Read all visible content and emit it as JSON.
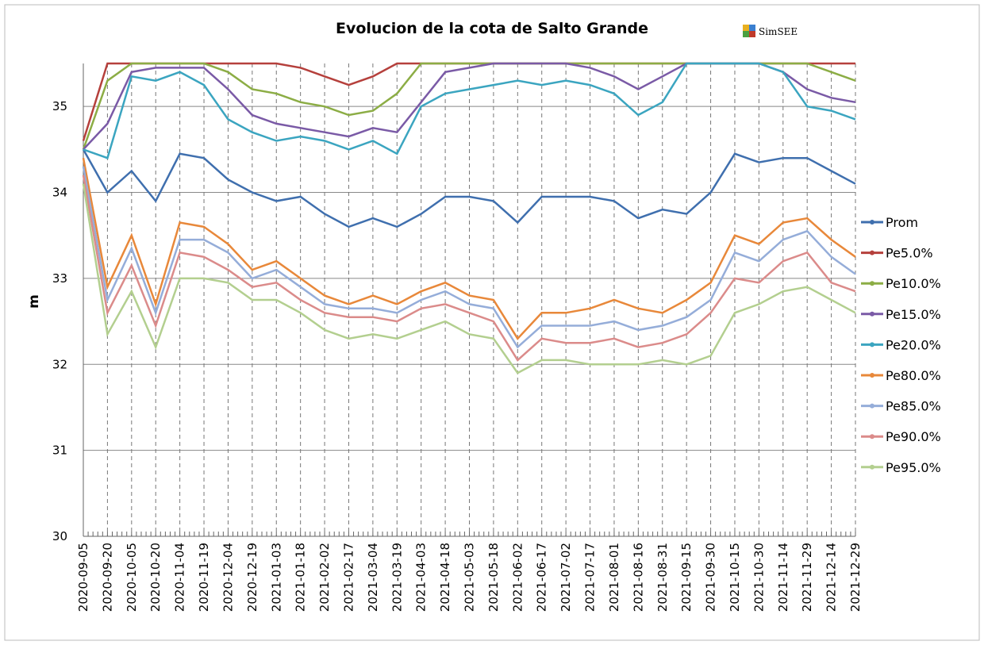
{
  "chart_data": {
    "type": "line",
    "title": "Evolucion de la cota de Salto Grande",
    "logo_text": "SimSEE",
    "y_label": "m",
    "categories": [
      "2020-09-05",
      "2020-09-20",
      "2020-10-05",
      "2020-10-20",
      "2020-11-04",
      "2020-11-19",
      "2020-12-04",
      "2020-12-19",
      "2021-01-03",
      "2021-01-18",
      "2021-02-02",
      "2021-02-17",
      "2021-03-04",
      "2021-03-19",
      "2021-04-03",
      "2021-04-18",
      "2021-05-03",
      "2021-05-18",
      "2021-06-02",
      "2021-06-17",
      "2021-07-02",
      "2021-07-17",
      "2021-08-01",
      "2021-08-16",
      "2021-08-31",
      "2021-09-15",
      "2021-09-30",
      "2021-10-15",
      "2021-10-30",
      "2021-11-14",
      "2021-11-29",
      "2021-12-14",
      "2021-12-29"
    ],
    "ylim": [
      30,
      35.5
    ],
    "yticks": [
      30,
      31,
      32,
      33,
      34,
      35
    ],
    "grid": true,
    "legend": "right",
    "series": [
      {
        "name": "Prom",
        "color": "#3f6fae",
        "values": [
          34.5,
          34.0,
          34.25,
          33.9,
          34.45,
          34.4,
          34.15,
          34.0,
          33.9,
          33.95,
          33.75,
          33.6,
          33.7,
          33.6,
          33.75,
          33.95,
          33.95,
          33.9,
          33.65,
          33.95,
          33.95,
          33.95,
          33.9,
          33.7,
          33.8,
          33.75,
          34.0,
          34.45,
          34.35,
          34.4,
          34.4,
          34.25,
          34.1
        ]
      },
      {
        "name": "Pe5.0%",
        "color": "#b5403c",
        "values": [
          34.6,
          35.5,
          35.5,
          35.5,
          35.5,
          35.5,
          35.5,
          35.5,
          35.5,
          35.45,
          35.35,
          35.25,
          35.35,
          35.5,
          35.5,
          35.5,
          35.5,
          35.5,
          35.5,
          35.5,
          35.5,
          35.5,
          35.5,
          35.5,
          35.5,
          35.5,
          35.5,
          35.5,
          35.5,
          35.5,
          35.5,
          35.5,
          35.5
        ]
      },
      {
        "name": "Pe10.0%",
        "color": "#8cad45",
        "values": [
          34.5,
          35.3,
          35.5,
          35.5,
          35.5,
          35.5,
          35.4,
          35.2,
          35.15,
          35.05,
          35.0,
          34.9,
          34.95,
          35.15,
          35.5,
          35.5,
          35.5,
          35.5,
          35.5,
          35.5,
          35.5,
          35.5,
          35.5,
          35.5,
          35.5,
          35.5,
          35.5,
          35.5,
          35.5,
          35.5,
          35.5,
          35.4,
          35.3
        ]
      },
      {
        "name": "Pe15.0%",
        "color": "#7a5aa6",
        "values": [
          34.5,
          34.8,
          35.4,
          35.45,
          35.45,
          35.45,
          35.2,
          34.9,
          34.8,
          34.75,
          34.7,
          34.65,
          34.75,
          34.7,
          35.05,
          35.4,
          35.45,
          35.5,
          35.5,
          35.5,
          35.5,
          35.45,
          35.35,
          35.2,
          35.35,
          35.5,
          35.5,
          35.5,
          35.5,
          35.4,
          35.2,
          35.1,
          35.05
        ]
      },
      {
        "name": "Pe20.0%",
        "color": "#3ba5c0",
        "values": [
          34.5,
          34.4,
          35.35,
          35.3,
          35.4,
          35.25,
          34.85,
          34.7,
          34.6,
          34.65,
          34.6,
          34.5,
          34.6,
          34.45,
          35.0,
          35.15,
          35.2,
          35.25,
          35.3,
          35.25,
          35.3,
          35.25,
          35.15,
          34.9,
          35.05,
          35.5,
          35.5,
          35.5,
          35.5,
          35.4,
          35.0,
          34.95,
          34.85
        ]
      },
      {
        "name": "Pe80.0%",
        "color": "#e8883a",
        "values": [
          34.4,
          32.9,
          33.5,
          32.7,
          33.65,
          33.6,
          33.4,
          33.1,
          33.2,
          33.0,
          32.8,
          32.7,
          32.8,
          32.7,
          32.85,
          32.95,
          32.8,
          32.75,
          32.3,
          32.6,
          32.6,
          32.65,
          32.75,
          32.65,
          32.6,
          32.75,
          32.95,
          33.5,
          33.4,
          33.65,
          33.7,
          33.45,
          33.25
        ]
      },
      {
        "name": "Pe85.0%",
        "color": "#95add9",
        "values": [
          34.3,
          32.75,
          33.35,
          32.6,
          33.45,
          33.45,
          33.3,
          33.0,
          33.1,
          32.9,
          32.7,
          32.65,
          32.65,
          32.6,
          32.75,
          32.85,
          32.7,
          32.65,
          32.2,
          32.45,
          32.45,
          32.45,
          32.5,
          32.4,
          32.45,
          32.55,
          32.75,
          33.3,
          33.2,
          33.45,
          33.55,
          33.25,
          33.05
        ]
      },
      {
        "name": "Pe90.0%",
        "color": "#db8b8a",
        "values": [
          34.2,
          32.6,
          33.15,
          32.45,
          33.3,
          33.25,
          33.1,
          32.9,
          32.95,
          32.75,
          32.6,
          32.55,
          32.55,
          32.5,
          32.65,
          32.7,
          32.6,
          32.5,
          32.05,
          32.3,
          32.25,
          32.25,
          32.3,
          32.2,
          32.25,
          32.35,
          32.6,
          33.0,
          32.95,
          33.2,
          33.3,
          32.95,
          32.85
        ]
      },
      {
        "name": "Pe95.0%",
        "color": "#b3cf8f",
        "values": [
          34.1,
          32.35,
          32.85,
          32.2,
          33.0,
          33.0,
          32.95,
          32.75,
          32.75,
          32.6,
          32.4,
          32.3,
          32.35,
          32.3,
          32.4,
          32.5,
          32.35,
          32.3,
          31.9,
          32.05,
          32.05,
          32.0,
          32.0,
          32.0,
          32.05,
          32.0,
          32.1,
          32.6,
          32.7,
          32.85,
          32.9,
          32.75,
          32.6
        ]
      }
    ]
  }
}
